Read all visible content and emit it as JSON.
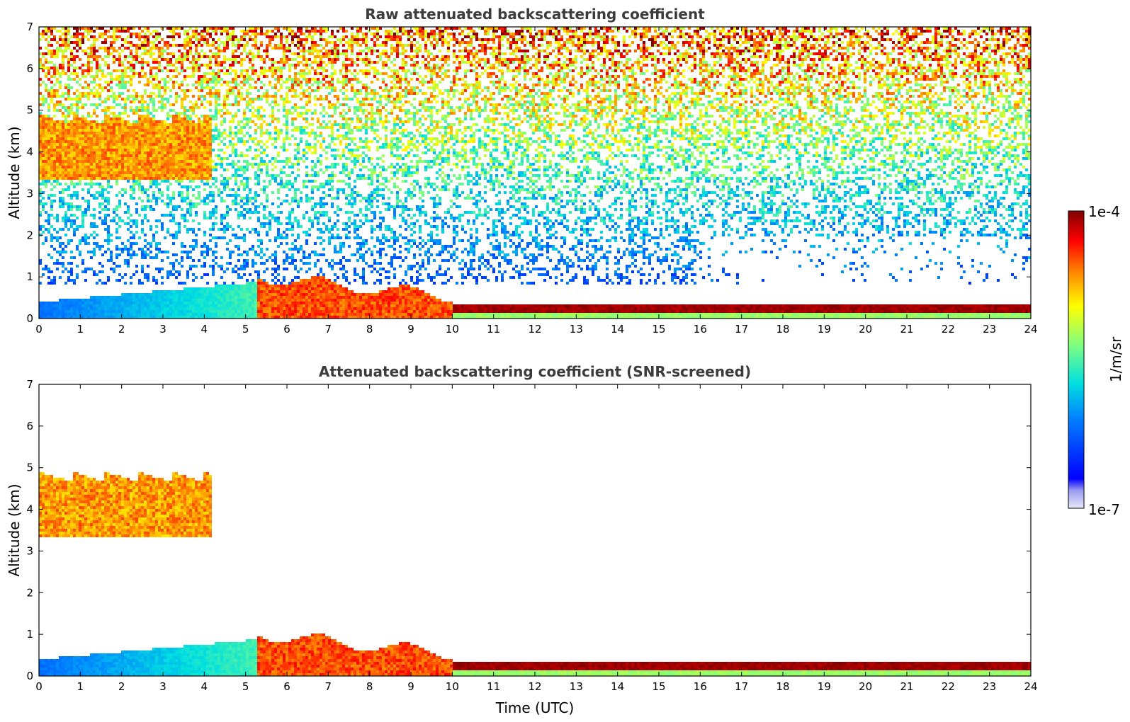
{
  "chart_data": [
    {
      "type": "heatmap",
      "title": "Raw attenuated backscattering coefficient",
      "xlabel": "",
      "ylabel": "Altitude (km)",
      "xlim": [
        0,
        24
      ],
      "ylim": [
        0,
        7
      ],
      "xticks": [
        0,
        1,
        2,
        3,
        4,
        5,
        6,
        7,
        8,
        9,
        10,
        11,
        12,
        13,
        14,
        15,
        16,
        17,
        18,
        19,
        20,
        21,
        22,
        23,
        24
      ],
      "yticks": [
        0,
        1,
        2,
        3,
        4,
        5,
        6,
        7
      ],
      "color_scale": "log",
      "colormap": "jet",
      "colorbar_range": [
        "1e-7",
        "1e-4"
      ],
      "features": [
        {
          "name": "cloud layer",
          "time": [
            0,
            4.2
          ],
          "altitude": [
            3.3,
            5.0
          ],
          "level": "high"
        },
        {
          "name": "boundary layer",
          "time": [
            0,
            5.3
          ],
          "altitude": [
            0,
            0.8
          ],
          "level": "low"
        },
        {
          "name": "aerosol layer",
          "time": [
            5.3,
            10
          ],
          "altitude": [
            0,
            1.3
          ],
          "level": "high"
        },
        {
          "name": "surface layer",
          "time": [
            10,
            24
          ],
          "altitude": [
            0,
            0.35
          ],
          "level": "high"
        }
      ]
    },
    {
      "type": "heatmap",
      "title": "Attenuated backscattering coefficient (SNR-screened)",
      "xlabel": "Time (UTC)",
      "ylabel": "Altitude (km)",
      "xlim": [
        0,
        24
      ],
      "ylim": [
        0,
        7
      ],
      "xticks": [
        0,
        1,
        2,
        3,
        4,
        5,
        6,
        7,
        8,
        9,
        10,
        11,
        12,
        13,
        14,
        15,
        16,
        17,
        18,
        19,
        20,
        21,
        22,
        23,
        24
      ],
      "yticks": [
        0,
        1,
        2,
        3,
        4,
        5,
        6,
        7
      ],
      "color_scale": "log",
      "colormap": "jet",
      "colorbar_range": [
        "1e-7",
        "1e-4"
      ],
      "features": [
        {
          "name": "cloud layer",
          "time": [
            0,
            4.2
          ],
          "altitude": [
            3.3,
            5.0
          ],
          "level": "high"
        },
        {
          "name": "boundary layer",
          "time": [
            0,
            5.3
          ],
          "altitude": [
            0,
            0.9
          ],
          "level": "low"
        },
        {
          "name": "aerosol layer",
          "time": [
            5.3,
            10
          ],
          "altitude": [
            0,
            1.3
          ],
          "level": "high"
        },
        {
          "name": "surface layer",
          "time": [
            10,
            24
          ],
          "altitude": [
            0,
            0.35
          ],
          "level": "high"
        }
      ]
    }
  ],
  "colorbar": {
    "label": "1/m/sr",
    "max_label": "1e-4",
    "min_label": "1e-7",
    "colormap": "jet"
  }
}
